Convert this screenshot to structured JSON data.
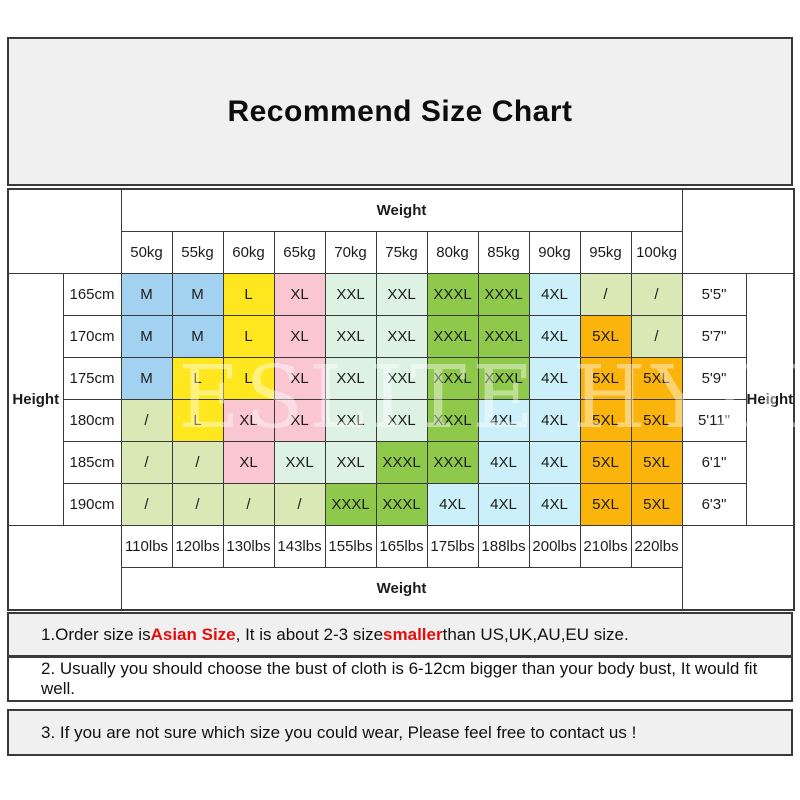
{
  "title": "Recommend Size Chart",
  "watermark": "ESLITE HYDN",
  "colors": {
    "accent_red": "#e60d0d",
    "panel_bg": "#f0f0f0",
    "border": "#3a3a3a",
    "size_colors": {
      "M": "#a2d2ef",
      "L": "#ffe71f",
      "XL": "#f9c6d2",
      "XXL": "#ddf2e3",
      "XXXL": "#8ec94b",
      "4XL": "#cbf0fa",
      "5XL": "#fbb40b",
      "/": "#d9e8b4"
    }
  },
  "table": {
    "weight_header": "Weight",
    "weight_footer": "Weight",
    "height_label_left": "Height",
    "height_label_right": "Height",
    "weight_cols_kg": [
      "50kg",
      "55kg",
      "60kg",
      "65kg",
      "70kg",
      "75kg",
      "80kg",
      "85kg",
      "90kg",
      "95kg",
      "100kg"
    ],
    "weight_cols_lbs": [
      "110lbs",
      "120lbs",
      "130lbs",
      "143lbs",
      "155lbs",
      "165lbs",
      "175lbs",
      "188lbs",
      "200lbs",
      "210lbs",
      "220lbs"
    ],
    "rows": [
      {
        "height_cm": "165cm",
        "height_imperial": "5'5\"",
        "sizes": [
          "M",
          "M",
          "L",
          "XL",
          "XXL",
          "XXL",
          "XXXL",
          "XXXL",
          "4XL",
          "/",
          "/"
        ]
      },
      {
        "height_cm": "170cm",
        "height_imperial": "5'7\"",
        "sizes": [
          "M",
          "M",
          "L",
          "XL",
          "XXL",
          "XXL",
          "XXXL",
          "XXXL",
          "4XL",
          "5XL",
          "/"
        ]
      },
      {
        "height_cm": "175cm",
        "height_imperial": "5'9\"",
        "sizes": [
          "M",
          "L",
          "L",
          "XL",
          "XXL",
          "XXL",
          "XXXL",
          "XXXL",
          "4XL",
          "5XL",
          "5XL"
        ]
      },
      {
        "height_cm": "180cm",
        "height_imperial": "5'11\"",
        "sizes": [
          "/",
          "L",
          "XL",
          "XL",
          "XXL",
          "XXL",
          "XXXL",
          "4XL",
          "4XL",
          "5XL",
          "5XL"
        ]
      },
      {
        "height_cm": "185cm",
        "height_imperial": "6'1\"",
        "sizes": [
          "/",
          "/",
          "XL",
          "XXL",
          "XXL",
          "XXXL",
          "XXXL",
          "4XL",
          "4XL",
          "5XL",
          "5XL"
        ]
      },
      {
        "height_cm": "190cm",
        "height_imperial": "6'3\"",
        "sizes": [
          "/",
          "/",
          "/",
          "/",
          "XXXL",
          "XXXL",
          "4XL",
          "4XL",
          "4XL",
          "5XL",
          "5XL"
        ]
      }
    ]
  },
  "notes": [
    {
      "segments": [
        {
          "text": "1.Order size is "
        },
        {
          "text": "Asian Size",
          "red": true
        },
        {
          "text": ", It is about 2-3 size "
        },
        {
          "text": "smaller",
          "red": true
        },
        {
          "text": " than US,UK,AU,EU size."
        }
      ]
    },
    {
      "segments": [
        {
          "text": "2. Usually you should choose the bust of cloth is 6-12cm bigger than your body bust, It would fit well."
        }
      ]
    },
    {
      "segments": [
        {
          "text": "3. If you are not sure which size you could wear, Please feel free to contact us !"
        }
      ]
    }
  ]
}
